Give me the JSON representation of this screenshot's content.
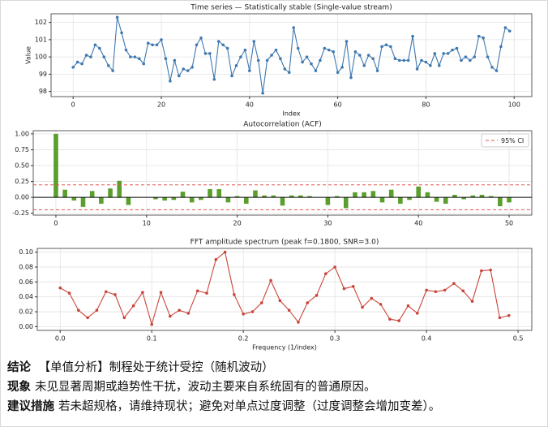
{
  "chart_data": [
    {
      "type": "line",
      "title": "Time series — Statistically stable (Single-value stream)",
      "xlabel": "Index",
      "ylabel": "Value",
      "grid": true,
      "markers": true,
      "x": [
        0,
        1,
        2,
        3,
        4,
        5,
        6,
        7,
        8,
        9,
        10,
        11,
        12,
        13,
        14,
        15,
        16,
        17,
        18,
        19,
        20,
        21,
        22,
        23,
        24,
        25,
        26,
        27,
        28,
        29,
        30,
        31,
        32,
        33,
        34,
        35,
        36,
        37,
        38,
        39,
        40,
        41,
        42,
        43,
        44,
        45,
        46,
        47,
        48,
        49,
        50,
        51,
        52,
        53,
        54,
        55,
        56,
        57,
        58,
        59,
        60,
        61,
        62,
        63,
        64,
        65,
        66,
        67,
        68,
        69,
        70,
        71,
        72,
        73,
        74,
        75,
        76,
        77,
        78,
        79,
        80,
        81,
        82,
        83,
        84,
        85,
        86,
        87,
        88,
        89,
        90,
        91,
        92,
        93,
        94,
        95,
        96,
        97,
        98,
        99
      ],
      "series": [
        {
          "color": "#3f78b0",
          "values": [
            99.4,
            99.7,
            99.6,
            100.1,
            100.0,
            100.7,
            100.5,
            100.0,
            99.5,
            99.2,
            102.3,
            101.4,
            100.4,
            100.0,
            100.0,
            99.9,
            99.6,
            100.8,
            100.7,
            100.7,
            101.0,
            99.9,
            98.6,
            99.8,
            98.9,
            99.3,
            99.2,
            99.4,
            100.7,
            101.1,
            100.2,
            100.2,
            98.7,
            100.9,
            100.7,
            100.5,
            98.9,
            99.5,
            100.0,
            100.4,
            99.2,
            100.9,
            99.8,
            97.9,
            99.8,
            100.1,
            100.4,
            99.9,
            99.3,
            99.1,
            101.7,
            100.5,
            99.7,
            100.0,
            99.6,
            99.2,
            99.8,
            100.5,
            100.4,
            100.3,
            99.1,
            99.4,
            100.9,
            98.8,
            100.3,
            100.1,
            99.5,
            100.1,
            99.9,
            99.2,
            100.6,
            100.7,
            100.6,
            99.9,
            99.8,
            99.8,
            99.8,
            101.2,
            99.3,
            99.8,
            99.7,
            99.5,
            100.2,
            99.5,
            100.2,
            100.2,
            100.4,
            100.5,
            99.8,
            100.0,
            99.8,
            100.0,
            101.2,
            101.1,
            100.0,
            99.4,
            99.2,
            100.6,
            101.7,
            101.5
          ]
        }
      ],
      "xlim": [
        -5,
        104
      ],
      "xticks": [
        0,
        20,
        40,
        60,
        80,
        100
      ],
      "ylim": [
        97.7,
        102.5
      ],
      "yticks": [
        98,
        99,
        100,
        101,
        102
      ]
    },
    {
      "type": "bar",
      "title": "Autocorrelation (ACF)",
      "grid": true,
      "legend": "upper right",
      "x": [
        0,
        1,
        2,
        3,
        4,
        5,
        6,
        7,
        8,
        9,
        10,
        11,
        12,
        13,
        14,
        15,
        16,
        17,
        18,
        19,
        20,
        21,
        22,
        23,
        24,
        25,
        26,
        27,
        28,
        29,
        30,
        31,
        32,
        33,
        34,
        35,
        36,
        37,
        38,
        39,
        40,
        41,
        42,
        43,
        44,
        45,
        46,
        47,
        48,
        49,
        50
      ],
      "series": [
        {
          "color": "#5a9e2c",
          "values": [
            1.0,
            0.12,
            -0.05,
            -0.15,
            0.1,
            -0.1,
            0.14,
            0.26,
            -0.12,
            0,
            0,
            -0.03,
            -0.05,
            -0.04,
            0.09,
            -0.08,
            -0.04,
            0.13,
            0.13,
            -0.08,
            0.02,
            -0.1,
            0.11,
            0.03,
            0.03,
            -0.13,
            0.03,
            0.03,
            0.02,
            0,
            -0.12,
            0.02,
            -0.17,
            0.08,
            0.08,
            0.1,
            -0.08,
            0.12,
            -0.1,
            -0.04,
            0.17,
            0.08,
            -0.07,
            -0.1,
            0.04,
            -0.03,
            0.03,
            0.04,
            0.02,
            -0.14,
            -0.08
          ]
        }
      ],
      "ci_lines": {
        "name": "95% CI",
        "color": "#e0504a",
        "values": [
          0.196,
          -0.196
        ]
      },
      "xlim": [
        -2.5,
        52.5
      ],
      "xticks": [
        0,
        10,
        20,
        30,
        40,
        50
      ],
      "ylim": [
        -0.28,
        1.05
      ],
      "yticks": [
        {
          "value": -0.25,
          "label": "-0.25"
        },
        {
          "value": 0,
          "label": "0.00"
        },
        {
          "value": 0.25,
          "label": "0.25"
        },
        {
          "value": 0.5,
          "label": "0.50"
        },
        {
          "value": 0.75,
          "label": "0.75"
        },
        {
          "value": 1,
          "label": "1.00"
        }
      ]
    },
    {
      "type": "line",
      "title": "FFT amplitude spectrum (peak f=0.1800, SNR=3.0)",
      "xlabel": "Frequency (1/index)",
      "grid": true,
      "markers": true,
      "x": [
        0,
        0.01,
        0.02,
        0.03,
        0.04,
        0.05,
        0.06,
        0.07,
        0.08,
        0.09,
        0.1,
        0.11,
        0.12,
        0.13,
        0.14,
        0.15,
        0.16,
        0.17,
        0.18,
        0.19,
        0.2,
        0.21,
        0.22,
        0.23,
        0.24,
        0.25,
        0.26,
        0.27,
        0.28,
        0.29,
        0.3,
        0.31,
        0.32,
        0.33,
        0.34,
        0.35,
        0.36,
        0.37,
        0.38,
        0.39,
        0.4,
        0.41,
        0.42,
        0.43,
        0.44,
        0.45,
        0.46,
        0.47,
        0.48,
        0.49
      ],
      "series": [
        {
          "color": "#c9453a",
          "values": [
            0.052,
            0.045,
            0.022,
            0.012,
            0.022,
            0.047,
            0.043,
            0.012,
            0.028,
            0.046,
            0.003,
            0.046,
            0.014,
            0.022,
            0.018,
            0.048,
            0.045,
            0.09,
            0.1,
            0.043,
            0.017,
            0.02,
            0.032,
            0.062,
            0.035,
            0.022,
            0.006,
            0.032,
            0.042,
            0.071,
            0.08,
            0.051,
            0.054,
            0.026,
            0.038,
            0.03,
            0.01,
            0.008,
            0.028,
            0.018,
            0.049,
            0.047,
            0.049,
            0.058,
            0.048,
            0.034,
            0.075,
            0.076,
            0.012,
            0.015
          ]
        }
      ],
      "xlim": [
        -0.025,
        0.515
      ],
      "xticks": [
        {
          "value": 0,
          "label": "0.0"
        },
        0.1,
        0.2,
        0.3,
        0.4,
        0.5
      ],
      "ylim": [
        -0.005,
        0.105
      ],
      "yticks": [
        {
          "value": 0,
          "label": "0.00"
        },
        {
          "value": 0.02,
          "label": "0.02"
        },
        {
          "value": 0.04,
          "label": "0.04"
        },
        {
          "value": 0.06,
          "label": "0.06"
        },
        {
          "value": 0.08,
          "label": "0.08"
        },
        {
          "value": 0.1,
          "label": "0.10"
        }
      ]
    }
  ],
  "summary": [
    {
      "label": "结论",
      "text": "【单值分析】制程处于统计受控（随机波动）"
    },
    {
      "label": "现象",
      "text": "未见显著周期或趋势性干扰，波动主要来自系统固有的普通原因。"
    },
    {
      "label": "建议措施",
      "text": "若未超规格，请维持现状；避免对单点过度调整（过度调整会增加变差）。"
    }
  ]
}
